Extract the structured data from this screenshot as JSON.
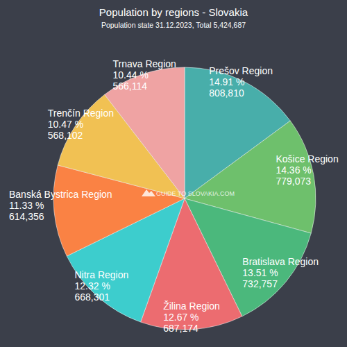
{
  "chart_data": {
    "type": "pie",
    "title": "Population by regions - Slovakia",
    "subtitle": "Population state 31.12.2023, Total 5,424,687",
    "annotations": [
      "GUIDE TO SLOVAKIA.COM"
    ],
    "categories": [
      "Prešov Region",
      "Košice Region",
      "Bratislava Region",
      "Žilina Region",
      "Nitra Region",
      "Banská Bystrica Region",
      "Trenčín Region",
      "Trnava Region"
    ],
    "values": [
      14.91,
      14.36,
      13.51,
      12.67,
      12.32,
      11.33,
      10.47,
      10.44
    ],
    "value_labels": [
      "14.91 %",
      "14.36 %",
      "13.51 %",
      "12.67 %",
      "12.32 %",
      "11.33 %",
      "10.47 %",
      "10.44 %"
    ],
    "populations": [
      808810,
      779073,
      732757,
      687174,
      668301,
      614356,
      568102,
      566114
    ],
    "colors": [
      "#48aeaa",
      "#6ec06c",
      "#4bb87c",
      "#ec6c70",
      "#3dcdcd",
      "#fa8244",
      "#f1c153",
      "#efa3a3"
    ],
    "data_labels": true
  }
}
